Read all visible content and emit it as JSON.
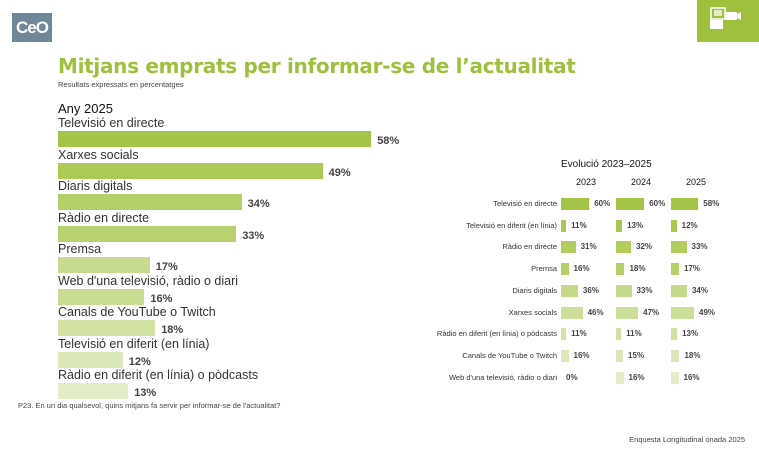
{
  "header": {
    "logo_text": "CeO",
    "title": "Mitjans emprats per informar-se de l’actualitat",
    "subtitle": "Resultats expressats en percentatges",
    "corner_icon": "media-devices-icon",
    "accent_color": "#9dc13d"
  },
  "footer": {
    "question": "P23. En un dia qualsevol, quins mitjans fa servir per informar-se de l'actualitat?",
    "source": "Enquesta Longitudinal onada 2025"
  },
  "chart_data": [
    {
      "type": "bar",
      "orientation": "horizontal",
      "title": "Any 2025",
      "unit": "%",
      "categories": [
        "Televisió en directe",
        "Xarxes socials",
        "Diaris digitals",
        "Ràdio en directe",
        "Premsa",
        "Web d'una televisió, ràdio o diari",
        "Canals de YouTube o Twitch",
        "Televisió en diferit (en línia)",
        "Ràdio en diferit (en línia) o pòdcasts"
      ],
      "values": [
        58,
        49,
        34,
        33,
        17,
        16,
        18,
        12,
        13
      ],
      "labels": [
        "58%",
        "49%",
        "34%",
        "33%",
        "17%",
        "16%",
        "18%",
        "12%",
        "13%"
      ],
      "colors": [
        "#a2c547",
        "#abca55",
        "#b4d068",
        "#b8d272",
        "#c6db8d",
        "#c9dc93",
        "#d2e2a5",
        "#d9e7b4",
        "#e2ecc6"
      ]
    },
    {
      "type": "bar",
      "orientation": "horizontal",
      "title": "Evolució 2023–2025",
      "unit": "%",
      "categories": [
        "Televisió en directe",
        "Televisió en diferit (en línia)",
        "Ràdio en directe",
        "Premsa",
        "Diaris digitals",
        "Xarxes socials",
        "Ràdio en diferit (en línia) o pòdcasts",
        "Canals de YouTube o Twitch",
        "Web d'una televisió, ràdio o diari"
      ],
      "colors": [
        "#a2c547",
        "#a8c84f",
        "#b0cd5e",
        "#b4d068",
        "#c4da8a",
        "#cbdf98",
        "#d2e2a5",
        "#dce8b9",
        "#e2ecc6"
      ],
      "series": [
        {
          "name": "2023",
          "values": [
            60,
            11,
            31,
            16,
            36,
            46,
            11,
            16,
            0
          ],
          "labels": [
            "60%",
            "11%",
            "31%",
            "16%",
            "36%",
            "46%",
            "11%",
            "16%",
            "0%"
          ]
        },
        {
          "name": "2024",
          "values": [
            60,
            13,
            32,
            18,
            33,
            47,
            11,
            15,
            16
          ],
          "labels": [
            "60%",
            "13%",
            "32%",
            "18%",
            "33%",
            "47%",
            "11%",
            "15%",
            "16%"
          ]
        },
        {
          "name": "2025",
          "values": [
            58,
            12,
            33,
            17,
            34,
            49,
            13,
            18,
            16
          ],
          "labels": [
            "58%",
            "12%",
            "33%",
            "17%",
            "34%",
            "49%",
            "13%",
            "18%",
            "16%"
          ]
        }
      ]
    }
  ]
}
